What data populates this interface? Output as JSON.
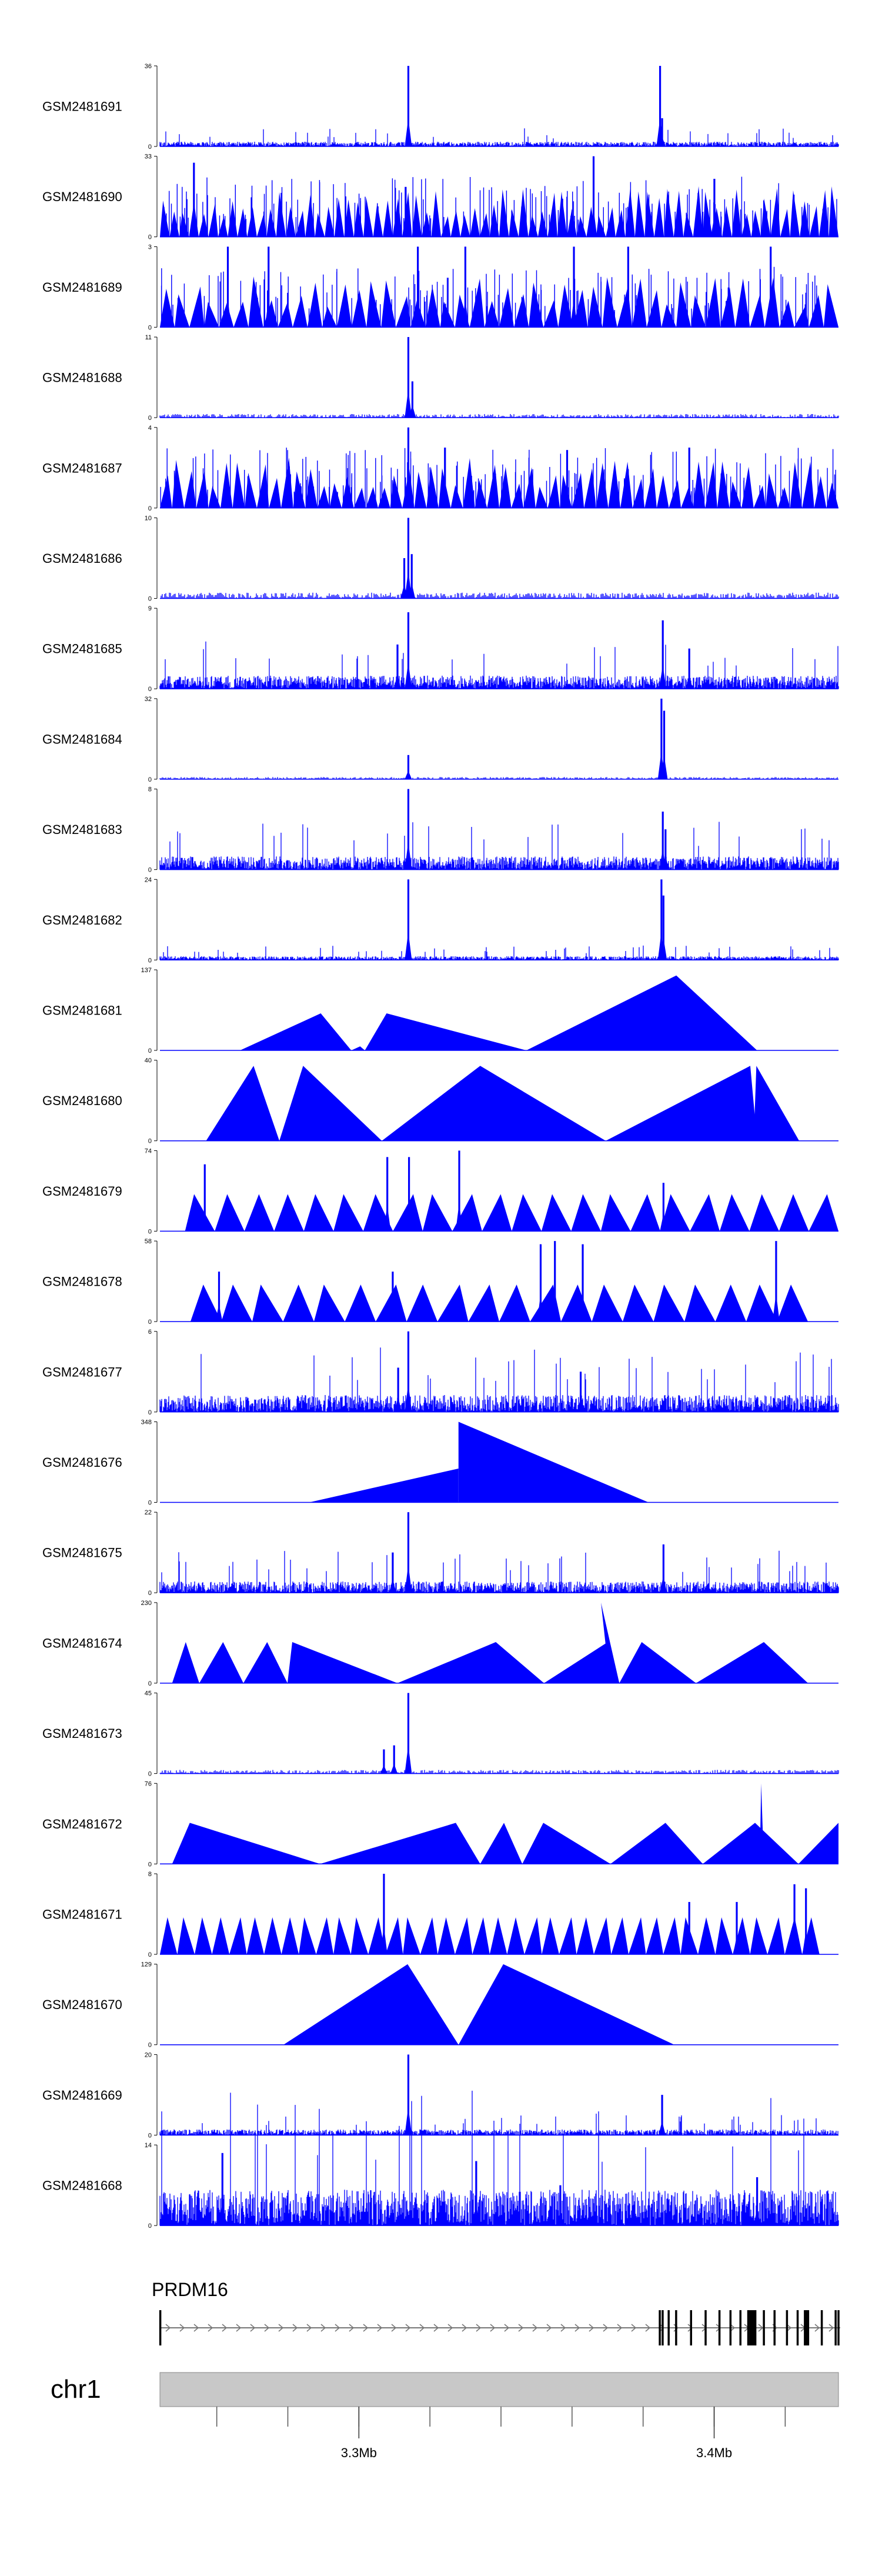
{
  "colors": {
    "signal": "#0000ff",
    "axis": "#000000",
    "ideogram": "#c8c8c8",
    "gene": "#000000"
  },
  "chart_data": {
    "type": "area",
    "chromosome": "chr1",
    "gene": {
      "name": "PRDM16",
      "strand": "+",
      "start_mb": 3.244,
      "end_mb": 3.4355,
      "exons_mb": [
        3.2441,
        3.3847,
        3.3855,
        3.3872,
        3.3893,
        3.3935,
        3.3976,
        3.4015,
        3.4046,
        3.4074,
        3.4096,
        3.4106,
        3.4116,
        3.414,
        3.417,
        3.4205,
        3.4235,
        3.426,
        3.4303,
        3.4342,
        3.435
      ]
    },
    "x_range_mb": [
      3.244,
      3.435
    ],
    "x_ticks_mb": [
      3.26,
      3.28,
      3.3,
      3.32,
      3.34,
      3.36,
      3.38,
      3.4,
      3.42
    ],
    "x_tick_labels": [
      {
        "value": 3.3,
        "label": "3.3Mb"
      },
      {
        "value": 3.4,
        "label": "3.4Mb"
      }
    ],
    "tracks": [
      {
        "name": "GSM2481691",
        "ymax": 36,
        "pattern": "noise",
        "seed": 11,
        "base": 0.05,
        "peaks": [
          [
            0.366,
            1.0
          ],
          [
            0.737,
            1.0
          ],
          [
            0.74,
            0.35
          ]
        ]
      },
      {
        "name": "GSM2481690",
        "ymax": 33,
        "pattern": "dense-tri",
        "seed": 12,
        "tri_count": 70,
        "peaks": [
          [
            0.05,
            0.92
          ],
          [
            0.639,
            1.0
          ],
          [
            0.817,
            0.72
          ],
          [
            0.362,
            0.62
          ]
        ]
      },
      {
        "name": "GSM2481689",
        "ymax": 3,
        "pattern": "dense-tri",
        "seed": 13,
        "tri_count": 46,
        "peaks": [
          [
            0.1,
            1.0
          ],
          [
            0.16,
            1.0
          ],
          [
            0.38,
            1.0
          ],
          [
            0.45,
            1.0
          ],
          [
            0.61,
            1.0
          ],
          [
            0.69,
            1.0
          ],
          [
            0.9,
            1.0
          ]
        ]
      },
      {
        "name": "GSM2481688",
        "ymax": 11,
        "pattern": "sparse",
        "seed": 14,
        "base": 0.05,
        "peaks": [
          [
            0.366,
            1.0
          ],
          [
            0.372,
            0.45
          ]
        ]
      },
      {
        "name": "GSM2481687",
        "ymax": 4,
        "pattern": "dense-tri",
        "seed": 15,
        "tri_count": 56,
        "peaks": [
          [
            0.366,
            1.0
          ],
          [
            0.42,
            0.75
          ],
          [
            0.6,
            0.72
          ],
          [
            0.78,
            0.75
          ]
        ]
      },
      {
        "name": "GSM2481686",
        "ymax": 10,
        "pattern": "sparse",
        "seed": 16,
        "base": 0.08,
        "peaks": [
          [
            0.366,
            1.0
          ],
          [
            0.371,
            0.55
          ],
          [
            0.36,
            0.5
          ]
        ]
      },
      {
        "name": "GSM2481685",
        "ymax": 9,
        "pattern": "noise",
        "seed": 17,
        "base": 0.14,
        "peaks": [
          [
            0.366,
            0.95
          ],
          [
            0.741,
            0.85
          ],
          [
            0.78,
            0.5
          ],
          [
            0.35,
            0.55
          ]
        ]
      },
      {
        "name": "GSM2481684",
        "ymax": 32,
        "pattern": "sparse",
        "seed": 18,
        "base": 0.03,
        "peaks": [
          [
            0.739,
            1.0
          ],
          [
            0.743,
            0.85
          ],
          [
            0.366,
            0.3
          ]
        ]
      },
      {
        "name": "GSM2481683",
        "ymax": 8,
        "pattern": "noise",
        "seed": 19,
        "base": 0.14,
        "peaks": [
          [
            0.366,
            1.0
          ],
          [
            0.741,
            0.72
          ],
          [
            0.745,
            0.5
          ]
        ]
      },
      {
        "name": "GSM2481682",
        "ymax": 24,
        "pattern": "noise",
        "seed": 20,
        "base": 0.04,
        "peaks": [
          [
            0.366,
            1.0
          ],
          [
            0.739,
            1.0
          ],
          [
            0.742,
            0.8
          ]
        ]
      },
      {
        "name": "GSM2481681",
        "ymax": 137,
        "pattern": "triangles",
        "triangles": [
          [
            0.118,
            0.237,
            0.282,
            0.46
          ],
          [
            0.282,
            0.295,
            0.302,
            0.05
          ],
          [
            0.302,
            0.334,
            0.54,
            0.46
          ],
          [
            0.54,
            0.761,
            0.88,
            0.93
          ]
        ]
      },
      {
        "name": "GSM2481680",
        "ymax": 40,
        "pattern": "triangles",
        "triangles": [
          [
            0.068,
            0.138,
            0.176,
            0.93
          ],
          [
            0.176,
            0.211,
            0.327,
            0.93
          ],
          [
            0.327,
            0.472,
            0.657,
            0.93
          ],
          [
            0.657,
            0.87,
            0.88,
            0.93
          ],
          [
            0.875,
            0.879,
            0.942,
            0.93
          ]
        ]
      },
      {
        "name": "GSM2481679",
        "ymax": 74,
        "pattern": "tri-row",
        "seed": 21,
        "tri_count": 22,
        "start": 0.037,
        "end": 1.0,
        "tri_h": 0.46,
        "peaks": [
          [
            0.066,
            0.83
          ],
          [
            0.335,
            0.92
          ],
          [
            0.367,
            0.92
          ],
          [
            0.441,
            1.0
          ],
          [
            0.742,
            0.6
          ]
        ]
      },
      {
        "name": "GSM2481678",
        "ymax": 58,
        "pattern": "tri-row",
        "seed": 22,
        "tri_count": 20,
        "start": 0.045,
        "end": 0.955,
        "tri_h": 0.46,
        "peaks": [
          [
            0.087,
            0.62
          ],
          [
            0.343,
            0.62
          ],
          [
            0.561,
            0.96
          ],
          [
            0.582,
            1.0
          ],
          [
            0.623,
            0.96
          ],
          [
            0.908,
            1.0
          ]
        ]
      },
      {
        "name": "GSM2481677",
        "ymax": 6,
        "pattern": "noise",
        "seed": 23,
        "base": 0.18,
        "peaks": [
          [
            0.366,
            1.0
          ],
          [
            0.351,
            0.55
          ],
          [
            0.62,
            0.5
          ]
        ]
      },
      {
        "name": "GSM2481676",
        "ymax": 348,
        "pattern": "triangles",
        "triangles": [
          [
            0.22,
            0.44,
            0.44,
            0.42
          ],
          [
            0.44,
            0.44,
            0.72,
            1.0
          ]
        ]
      },
      {
        "name": "GSM2481675",
        "ymax": 22,
        "pattern": "noise",
        "seed": 24,
        "base": 0.12,
        "peaks": [
          [
            0.366,
            1.0
          ],
          [
            0.742,
            0.6
          ],
          [
            0.343,
            0.5
          ]
        ]
      },
      {
        "name": "GSM2481674",
        "ymax": 230,
        "pattern": "triangles",
        "triangles": [
          [
            0.018,
            0.038,
            0.058,
            0.51
          ],
          [
            0.058,
            0.093,
            0.123,
            0.51
          ],
          [
            0.123,
            0.158,
            0.188,
            0.51
          ],
          [
            0.188,
            0.195,
            0.35,
            0.51
          ],
          [
            0.35,
            0.495,
            0.566,
            0.51
          ],
          [
            0.566,
            0.66,
            0.677,
            0.51
          ],
          [
            0.663,
            0.65,
            0.677,
            1.0
          ],
          [
            0.677,
            0.71,
            0.79,
            0.51
          ],
          [
            0.79,
            0.89,
            0.955,
            0.51
          ]
        ]
      },
      {
        "name": "GSM2481673",
        "ymax": 45,
        "pattern": "sparse",
        "seed": 25,
        "base": 0.05,
        "peaks": [
          [
            0.366,
            1.0
          ],
          [
            0.33,
            0.3
          ],
          [
            0.345,
            0.35
          ]
        ]
      },
      {
        "name": "GSM2481672",
        "ymax": 76,
        "pattern": "triangles",
        "triangles": [
          [
            0.018,
            0.044,
            0.236,
            0.51
          ],
          [
            0.236,
            0.436,
            0.472,
            0.51
          ],
          [
            0.472,
            0.507,
            0.534,
            0.51
          ],
          [
            0.534,
            0.565,
            0.664,
            0.51
          ],
          [
            0.664,
            0.745,
            0.8,
            0.51
          ],
          [
            0.8,
            0.877,
            0.941,
            0.51
          ],
          [
            0.941,
            1.0,
            1.0,
            0.51
          ],
          [
            0.884,
            0.886,
            0.89,
            1.0
          ]
        ]
      },
      {
        "name": "GSM2481671",
        "ymax": 8,
        "pattern": "tri-row",
        "seed": 26,
        "tri_count": 38,
        "start": 0.0,
        "end": 0.972,
        "tri_h": 0.46,
        "peaks": [
          [
            0.33,
            1.0
          ],
          [
            0.78,
            0.65
          ],
          [
            0.85,
            0.65
          ],
          [
            0.935,
            0.87
          ],
          [
            0.952,
            0.82
          ]
        ]
      },
      {
        "name": "GSM2481670",
        "ymax": 129,
        "pattern": "triangles",
        "triangles": [
          [
            0.182,
            0.365,
            0.44,
            1.0
          ],
          [
            0.44,
            0.506,
            0.758,
            1.0
          ]
        ]
      },
      {
        "name": "GSM2481669",
        "ymax": 20,
        "pattern": "noise",
        "seed": 27,
        "base": 0.06,
        "peaks": [
          [
            0.366,
            1.0
          ],
          [
            0.74,
            0.5
          ]
        ]
      },
      {
        "name": "GSM2481668",
        "ymax": 14,
        "pattern": "noise",
        "seed": 28,
        "base": 0.38,
        "peaks": [
          [
            0.092,
            0.9
          ],
          [
            0.466,
            0.8
          ],
          [
            0.59,
            0.5
          ],
          [
            0.88,
            0.6
          ]
        ]
      }
    ]
  }
}
